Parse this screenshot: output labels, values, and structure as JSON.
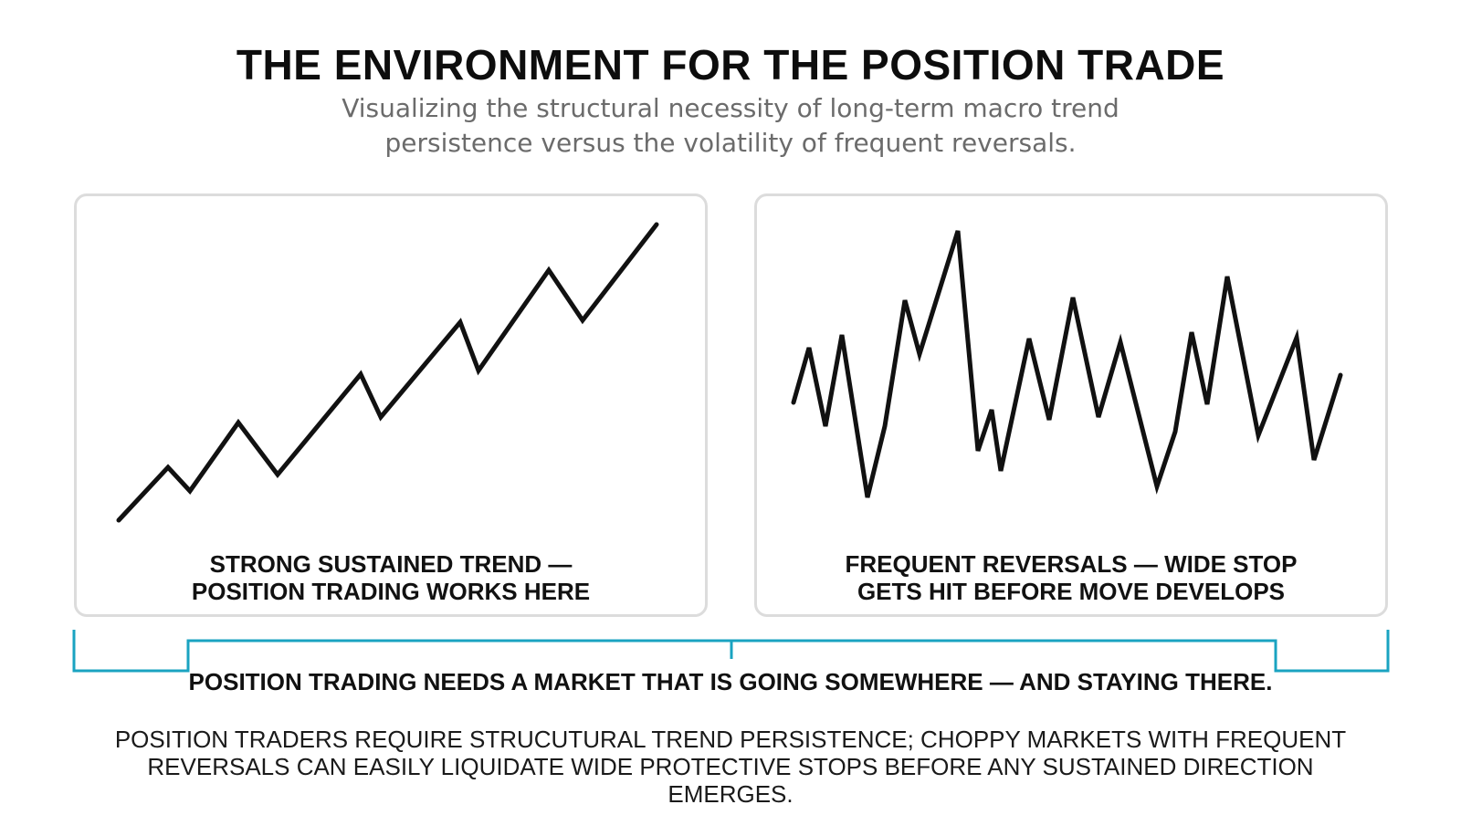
{
  "header": {
    "title": "THE ENVIRONMENT FOR THE POSITION TRADE",
    "subtitle": "Visualizing the structural necessity of long-term macro trend persistence versus the volatility of frequent reversals."
  },
  "panels": [
    {
      "caption_line1": "STRONG SUSTAINED TREND —",
      "caption_line2": "POSITION TRADING WORKS HERE",
      "line_color": "#111111"
    },
    {
      "caption_line1": "FREQUENT REVERSALS — WIDE STOP",
      "caption_line2": "GETS HIT BEFORE MOVE DEVELOPS",
      "line_color": "#111111"
    }
  ],
  "conclusion": {
    "text": "POSITION TRADING NEEDS A MARKET THAT IS GOING SOMEWHERE — AND STAYING THERE.",
    "bracket_color": "#1aa3c1"
  },
  "footer": {
    "line1": "POSITION TRADERS REQUIRE STRUCUTURAL TREND PERSISTENCE; CHOPPY MARKETS WITH FREQUENT",
    "line2": "REVERSALS CAN EASILY LIQUIDATE WIDE PROTECTIVE STOPS BEFORE ANY SUSTAINED DIRECTION EMERGES."
  },
  "colors": {
    "panel_border": "#dcdcdc",
    "subtitle": "#6b6b6b",
    "accent": "#1aa3c1"
  }
}
